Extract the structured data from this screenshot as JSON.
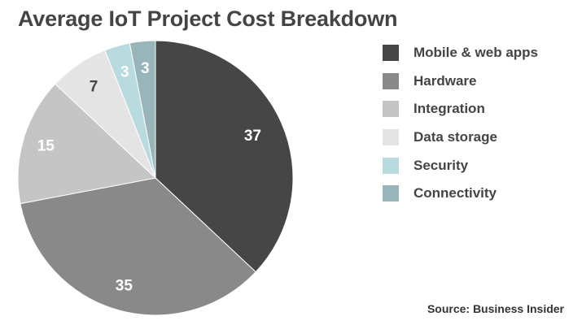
{
  "chart_data": {
    "type": "pie",
    "title": "Average IoT Project Cost Breakdown",
    "categories": [
      "Mobile & web apps",
      "Hardware",
      "Integration",
      "Data storage",
      "Security",
      "Connectivity"
    ],
    "values": [
      37,
      35,
      15,
      7,
      3,
      3
    ],
    "colors": [
      "#464646",
      "#898989",
      "#c5c5c5",
      "#e4e4e4",
      "#b9dbdf",
      "#98b5b9"
    ],
    "label_colors": [
      "#ffffff",
      "#ffffff",
      "#ffffff",
      "#444444",
      "#ffffff",
      "#ffffff"
    ],
    "start_angle_deg": 0,
    "direction": "clockwise",
    "legend": "right",
    "source": "Source: Business Insider"
  }
}
